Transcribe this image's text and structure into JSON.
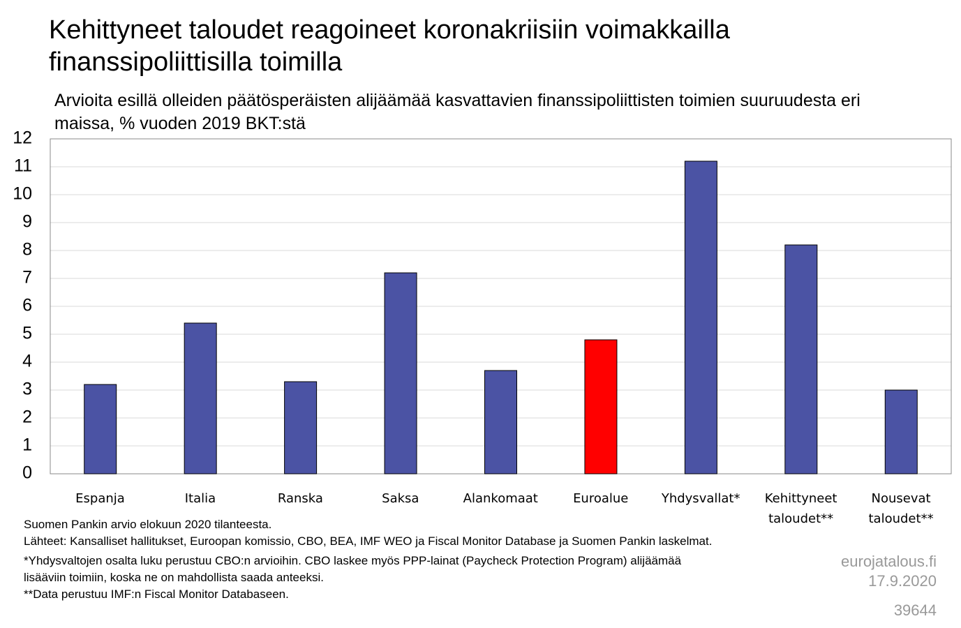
{
  "chart_data": {
    "type": "bar",
    "title": "Kehittyneet taloudet reagoineet koronakriisiin voimakkailla finanssipoliittisilla toimilla",
    "subtitle": "Arvioita esillä olleiden päätösperäisten alijäämää kasvattavien finanssipoliittisten toimien suuruudesta eri maissa, % vuoden 2019 BKT:stä",
    "categories": [
      "Espanja",
      "Italia",
      "Ranska",
      "Saksa",
      "Alankomaat",
      "Euroalue",
      "Yhdysvallat*",
      "Kehittyneet taloudet**",
      "Nousevat taloudet**"
    ],
    "values": [
      3.2,
      5.4,
      3.3,
      7.2,
      3.7,
      4.8,
      11.2,
      8.2,
      3.0
    ],
    "colors": [
      "#4b53a4",
      "#4b53a4",
      "#4b53a4",
      "#4b53a4",
      "#4b53a4",
      "#ff0000",
      "#4b53a4",
      "#4b53a4",
      "#4b53a4"
    ],
    "ylim": [
      0,
      12
    ],
    "yticks": [
      0,
      1,
      2,
      3,
      4,
      5,
      6,
      7,
      8,
      9,
      10,
      11,
      12
    ],
    "grid": true,
    "notes": [
      "Suomen Pankin arvio elokuun 2020 tilanteesta.",
      "Lähteet: Kansalliset hallitukset, Euroopan komissio, CBO, BEA, IMF WEO ja Fiscal Monitor Database ja Suomen Pankin laskelmat.",
      "*Yhdysvaltojen osalta luku perustuu CBO:n arvioihin. CBO laskee myös PPP-lainat (Paycheck Protection Program) alijäämää lisääviin toimiin, koska ne on mahdollista saada anteeksi.",
      "**Data perustuu IMF:n Fiscal Monitor Databaseen."
    ],
    "source": "eurojatalous.fi",
    "date": "17.9.2020",
    "id": "39644"
  }
}
